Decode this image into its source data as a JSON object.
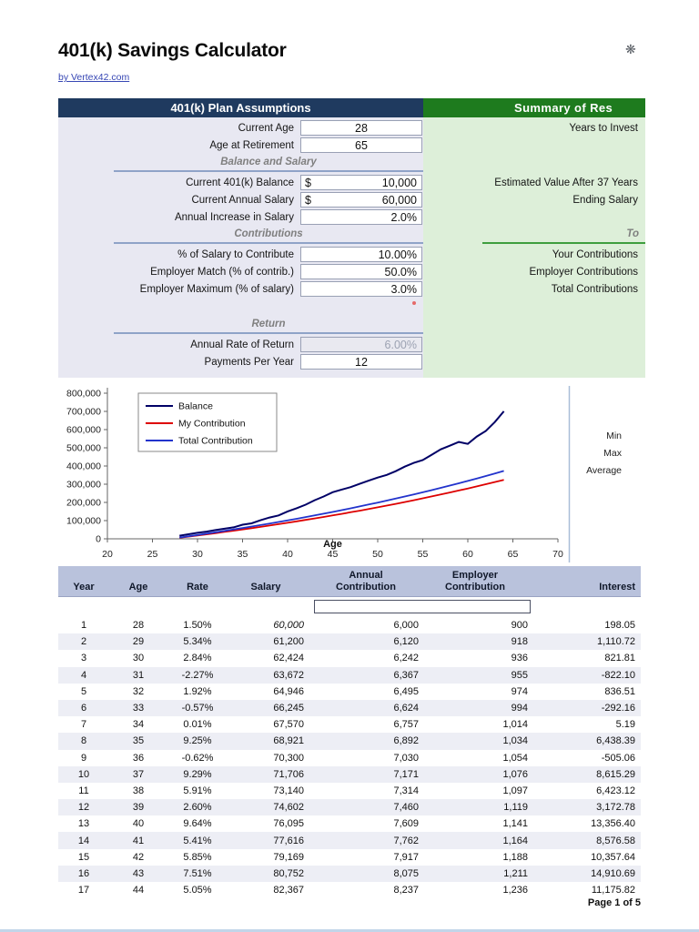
{
  "page": {
    "title": "401(k) Savings Calculator",
    "byline": "by Vertex42.com",
    "footer": "Page 1 of 5"
  },
  "icons": {
    "sparkle": "❋"
  },
  "colors": {
    "assumptions_header_bg": "#1F3A5F",
    "summary_header_bg": "#1E7B1E",
    "assumptions_panel_bg": "#E8E8F2",
    "summary_panel_bg": "#DDEFD9",
    "table_header_bg": "#B9C2DC",
    "balance_line": "#000066",
    "my_contribution_line": "#DD0000",
    "total_contribution_line": "#2233CC"
  },
  "assumptions": {
    "header": "401(k) Plan Assumptions",
    "rows": [
      {
        "type": "field",
        "label": "Current Age",
        "value": "28",
        "align": "center"
      },
      {
        "type": "field",
        "label": "Age at Retirement",
        "value": "65",
        "align": "center"
      },
      {
        "type": "section",
        "label": "Balance and Salary"
      },
      {
        "type": "field",
        "label": "Current 401(k) Balance",
        "prefix": "$",
        "value": "10,000",
        "align": "right"
      },
      {
        "type": "field",
        "label": "Current Annual Salary",
        "prefix": "$",
        "value": "60,000",
        "align": "right"
      },
      {
        "type": "field",
        "label": "Annual Increase in Salary",
        "value": "2.0%",
        "align": "right"
      },
      {
        "type": "section",
        "label": "Contributions"
      },
      {
        "type": "field",
        "label": "% of Salary to Contribute",
        "value": "10.00%",
        "align": "right"
      },
      {
        "type": "field",
        "label": "Employer Match (% of contrib.)",
        "value": "50.0%",
        "align": "right"
      },
      {
        "type": "field",
        "label": "Employer Maximum (% of salary)",
        "value": "3.0%",
        "align": "right"
      },
      {
        "type": "gap",
        "marker": true
      },
      {
        "type": "section",
        "label": "Return"
      },
      {
        "type": "field",
        "label": "Annual Rate of Return",
        "value": "6.00%",
        "align": "right",
        "disabled": true
      },
      {
        "type": "field",
        "label": "Payments Per Year",
        "value": "12",
        "align": "center"
      }
    ]
  },
  "summary": {
    "header": "Summary of Res",
    "rows": [
      {
        "type": "label",
        "text": "Years to Invest"
      },
      {
        "type": "empty"
      },
      {
        "type": "empty"
      },
      {
        "type": "label",
        "text": "Estimated Value After 37 Years"
      },
      {
        "type": "label",
        "text": "Ending Salary"
      },
      {
        "type": "empty"
      },
      {
        "type": "section",
        "text": "To"
      },
      {
        "type": "label",
        "text": "Your Contributions"
      },
      {
        "type": "label",
        "text": "Employer Contributions"
      },
      {
        "type": "label",
        "text": "Total Contributions"
      },
      {
        "type": "empty"
      },
      {
        "type": "empty"
      },
      {
        "type": "empty"
      },
      {
        "type": "empty"
      }
    ]
  },
  "chart_data": {
    "type": "line",
    "title": "",
    "xlabel": "Age",
    "ylabel": "",
    "xlim": [
      20,
      70
    ],
    "ylim": [
      0,
      800000
    ],
    "grid": false,
    "legend_position": "top-left",
    "xticks": [
      20,
      25,
      30,
      35,
      40,
      45,
      50,
      55,
      60,
      65,
      70
    ],
    "yticks": [
      {
        "v": 0,
        "label": "0"
      },
      {
        "v": 100000,
        "label": "100,000"
      },
      {
        "v": 200000,
        "label": "200,000"
      },
      {
        "v": 300000,
        "label": "300,000"
      },
      {
        "v": 400000,
        "label": "400,000"
      },
      {
        "v": 500000,
        "label": "500,000"
      },
      {
        "v": 600000,
        "label": "600,000"
      },
      {
        "v": 700000,
        "label": "700,000"
      },
      {
        "v": 800000,
        "label": "800,000"
      }
    ],
    "x": [
      28,
      29,
      30,
      31,
      32,
      33,
      34,
      35,
      36,
      37,
      38,
      39,
      40,
      41,
      42,
      43,
      44,
      45,
      46,
      47,
      48,
      49,
      50,
      51,
      52,
      53,
      54,
      55,
      56,
      57,
      58,
      59,
      60,
      61,
      62,
      63,
      64
    ],
    "series": [
      {
        "name": "Balance",
        "color": "#000066",
        "width": 2,
        "values": [
          17098,
          25246,
          33246,
          39746,
          48052,
          55378,
          63154,
          77518,
          85097,
          101959,
          116793,
          128545,
          150651,
          168154,
          187617,
          211814,
          232463,
          256072,
          270500,
          283800,
          301900,
          319600,
          336400,
          351200,
          371500,
          396300,
          416900,
          432400,
          461800,
          491300,
          511600,
          531900,
          521400,
          561800,
          592300,
          641700,
          700400
        ]
      },
      {
        "name": "My Contribution",
        "color": "#DD0000",
        "width": 1.8,
        "values": [
          6000,
          12120,
          18362,
          24729,
          31224,
          37848,
          44605,
          51497,
          58527,
          65698,
          73012,
          80472,
          88081,
          95843,
          103760,
          111835,
          120072,
          128473,
          137043,
          145784,
          154699,
          163793,
          173069,
          182530,
          192181,
          202025,
          212065,
          222306,
          232753,
          243408,
          254276,
          265361,
          276669,
          288202,
          299966,
          311966,
          324205
        ]
      },
      {
        "name": "Total Contribution",
        "color": "#2233CC",
        "width": 1.8,
        "values": [
          6900,
          13938,
          21116,
          28438,
          35908,
          43525,
          51296,
          59222,
          67306,
          75553,
          83964,
          92543,
          101293,
          110219,
          119324,
          128610,
          138083,
          147744,
          157599,
          167652,
          177904,
          188362,
          199029,
          209910,
          221008,
          232329,
          243875,
          255652,
          267666,
          279919,
          292417,
          305165,
          318169,
          331432,
          344961,
          358761,
          372836
        ]
      }
    ],
    "side_stats_labels": [
      "Min",
      "Max",
      "Average"
    ]
  },
  "table": {
    "columns": [
      {
        "line1": "",
        "line2": "Year",
        "align": "center"
      },
      {
        "line1": "",
        "line2": "Age",
        "align": "center"
      },
      {
        "line1": "",
        "line2": "Rate",
        "align": "center"
      },
      {
        "line1": "",
        "line2": "Salary",
        "align": "center"
      },
      {
        "line1": "Annual",
        "line2": "Contribution",
        "align": "center"
      },
      {
        "line1": "Employer",
        "line2": "Contribution",
        "align": "center"
      },
      {
        "line1": "",
        "line2": "Interest",
        "align": "right"
      }
    ],
    "rows": [
      [
        "1",
        "28",
        "1.50%",
        "60,000",
        "6,000",
        "900",
        "198.05"
      ],
      [
        "2",
        "29",
        "5.34%",
        "61,200",
        "6,120",
        "918",
        "1,110.72"
      ],
      [
        "3",
        "30",
        "2.84%",
        "62,424",
        "6,242",
        "936",
        "821.81"
      ],
      [
        "4",
        "31",
        "-2.27%",
        "63,672",
        "6,367",
        "955",
        "-822.10"
      ],
      [
        "5",
        "32",
        "1.92%",
        "64,946",
        "6,495",
        "974",
        "836.51"
      ],
      [
        "6",
        "33",
        "-0.57%",
        "66,245",
        "6,624",
        "994",
        "-292.16"
      ],
      [
        "7",
        "34",
        "0.01%",
        "67,570",
        "6,757",
        "1,014",
        "5.19"
      ],
      [
        "8",
        "35",
        "9.25%",
        "68,921",
        "6,892",
        "1,034",
        "6,438.39"
      ],
      [
        "9",
        "36",
        "-0.62%",
        "70,300",
        "7,030",
        "1,054",
        "-505.06"
      ],
      [
        "10",
        "37",
        "9.29%",
        "71,706",
        "7,171",
        "1,076",
        "8,615.29"
      ],
      [
        "11",
        "38",
        "5.91%",
        "73,140",
        "7,314",
        "1,097",
        "6,423.12"
      ],
      [
        "12",
        "39",
        "2.60%",
        "74,602",
        "7,460",
        "1,119",
        "3,172.78"
      ],
      [
        "13",
        "40",
        "9.64%",
        "76,095",
        "7,609",
        "1,141",
        "13,356.40"
      ],
      [
        "14",
        "41",
        "5.41%",
        "77,616",
        "7,762",
        "1,164",
        "8,576.58"
      ],
      [
        "15",
        "42",
        "5.85%",
        "79,169",
        "7,917",
        "1,188",
        "10,357.64"
      ],
      [
        "16",
        "43",
        "7.51%",
        "80,752",
        "8,075",
        "1,211",
        "14,910.69"
      ],
      [
        "17",
        "44",
        "5.05%",
        "82,367",
        "8,237",
        "1,236",
        "11,175.82"
      ]
    ]
  }
}
